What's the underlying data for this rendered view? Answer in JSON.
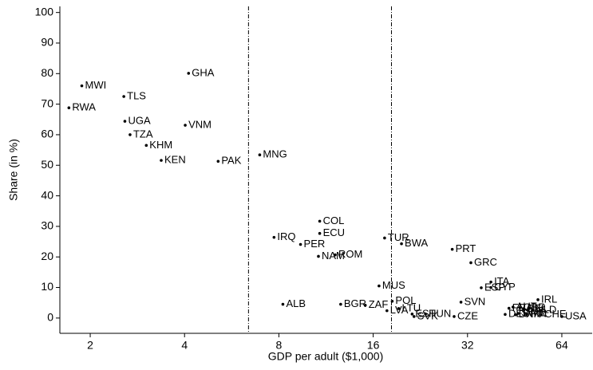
{
  "chart_data": {
    "type": "scatter",
    "x_label": "GDP per adult ($1,000)",
    "y_label": "Share (in %)",
    "xlim": [
      1.6,
      80
    ],
    "ylim": [
      -5,
      102
    ],
    "xscale": "log2",
    "xticks": [
      2,
      4,
      8,
      16,
      32,
      64
    ],
    "yticks": [
      0,
      10,
      20,
      30,
      40,
      50,
      60,
      70,
      80,
      90,
      100
    ],
    "vlines": [
      6.4,
      18.3
    ],
    "color": "#000000",
    "labels": [
      "MWI",
      "RWA",
      "TLS",
      "GHA",
      "UGA",
      "VNM",
      "TZA",
      "KHM",
      "KEN",
      "PAK",
      "MNG",
      "COL",
      "ECU",
      "IRQ",
      "PER",
      "NAM",
      "ROM",
      "TUR",
      "BWA",
      "PRT",
      "GRC",
      "ITA",
      "ESP",
      "CYP",
      "MUS",
      "SVN",
      "IRL",
      "POL",
      "ALB",
      "BGR",
      "ZAF",
      "LVA",
      "LTU",
      "EST",
      "SVK",
      "HUN",
      "CZE",
      "USA",
      "DEU",
      "FRA",
      "AUT",
      "DNK",
      "SWE",
      "GBR",
      "BEL",
      "FIN",
      "NLD",
      "CHE"
    ],
    "x": [
      1.88,
      1.71,
      2.56,
      4.12,
      2.58,
      4.02,
      2.68,
      3.02,
      3.37,
      5.12,
      6.95,
      10.8,
      10.8,
      7.72,
      9.38,
      10.7,
      12.1,
      17.4,
      19.7,
      28.6,
      32.8,
      38,
      35.4,
      38,
      16.7,
      30.5,
      53.7,
      18.4,
      8.24,
      12.6,
      15.1,
      17.7,
      19.3,
      21.3,
      21.6,
      23.5,
      29,
      64,
      42.2,
      43.4,
      44.7,
      45.5,
      46.4,
      47,
      48.5,
      49.5,
      51.6,
      55
    ],
    "values": [
      76,
      68.8,
      72.5,
      80.1,
      64.4,
      63.1,
      60,
      56.5,
      51.6,
      51.3,
      53.4,
      31.7,
      27.7,
      26.4,
      24.1,
      20.2,
      20.7,
      26.2,
      24.3,
      22.5,
      18.1,
      11.8,
      9.9,
      10,
      10.5,
      5.2,
      6,
      5.5,
      4.5,
      4.5,
      4.2,
      2.4,
      3.1,
      1.3,
      0.5,
      1.3,
      0.5,
      0.5,
      1.2,
      3.2,
      3.6,
      1.1,
      1.5,
      3.4,
      3,
      1.3,
      2.6,
      1.1
    ]
  }
}
